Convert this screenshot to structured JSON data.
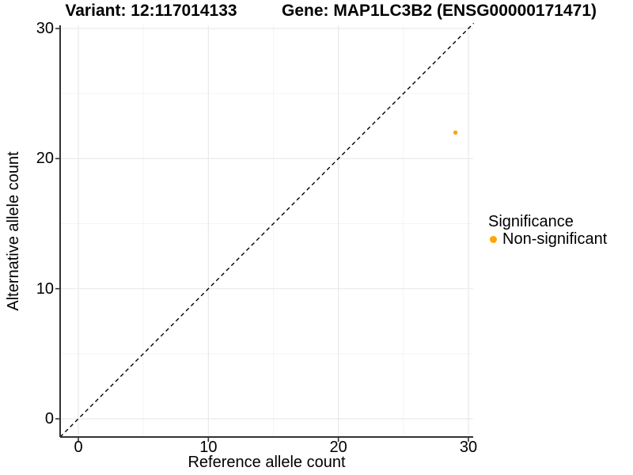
{
  "header": {
    "variant_title": "Variant: 12:117014133",
    "gene_title": "Gene: MAP1LC3B2 (ENSG00000171471)"
  },
  "axes": {
    "x": {
      "label": "Reference allele count",
      "ticks": [
        "0",
        "10",
        "20",
        "30"
      ]
    },
    "y": {
      "label": "Alternative allele count",
      "ticks": [
        "0",
        "10",
        "20",
        "30"
      ]
    }
  },
  "legend": {
    "title": "Significance",
    "items": [
      {
        "label": "Non-significant",
        "color": "#FFA500",
        "icon": "point-icon"
      }
    ]
  },
  "colors": {
    "background": "#ffffff",
    "axis_line": "#333333",
    "grid_major": "#e9e9e9",
    "grid_minor": "#f4f4f4",
    "reference_line": "#000000",
    "point_orange": "#FFA500",
    "text": "#000000"
  },
  "chart_data": {
    "type": "scatter",
    "title": "Variant: 12:117014133 | Gene: MAP1LC3B2 (ENSG00000171471)",
    "xlabel": "Reference allele count",
    "ylabel": "Alternative allele count",
    "xlim": [
      -1.4,
      30.4
    ],
    "ylim": [
      -1.4,
      30.4
    ],
    "x_ticks": [
      0,
      10,
      20,
      30
    ],
    "y_ticks": [
      0,
      10,
      20,
      30
    ],
    "x_minor_ticks": [
      5,
      15,
      25
    ],
    "y_minor_ticks": [
      5,
      15,
      25
    ],
    "grid": true,
    "legend_position": "right",
    "legend_title": "Significance",
    "series": [
      {
        "name": "Non-significant",
        "color": "#FFA500",
        "points": [
          [
            29,
            22
          ]
        ]
      }
    ],
    "reference_line": {
      "style": "dashed",
      "color": "#000000",
      "from": [
        -1.4,
        -1.4
      ],
      "to": [
        30.4,
        30.4
      ]
    }
  }
}
